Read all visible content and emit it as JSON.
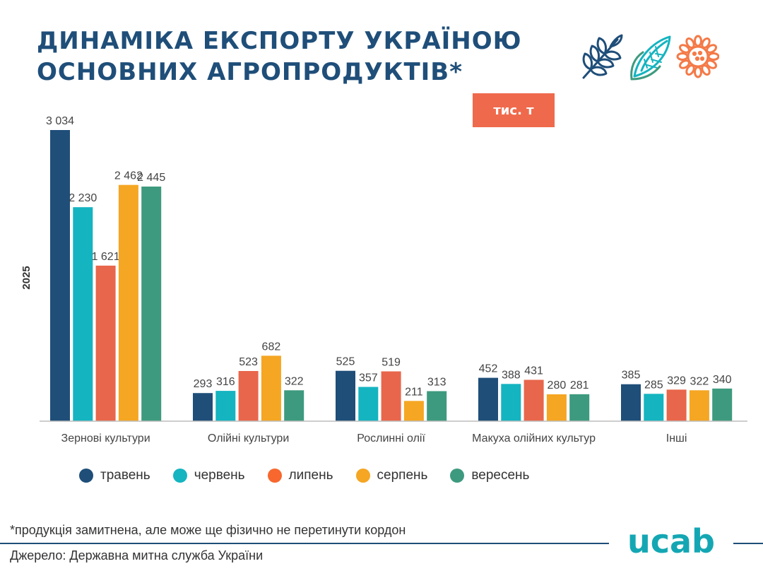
{
  "title": {
    "line1": "ДИНАМІКА ЕКСПОРТУ УКРАЇНОЮ",
    "line2": "ОСНОВНИХ АГРОПРОДУКТІВ*"
  },
  "unit_badge": "тис. т",
  "icons": [
    "wheat-icon",
    "corn-icon",
    "sunflower-icon"
  ],
  "colors": {
    "title": "#1f4e79",
    "badge": "#ef6a4c",
    "series": [
      "#1f4e79",
      "#14b4c0",
      "#e8664b",
      "#f5a623",
      "#3d9a7e"
    ],
    "legend_dots": [
      "#1f4e79",
      "#14b4c0",
      "#f7672e",
      "#f5a623",
      "#3d9a7e"
    ]
  },
  "chart_data": {
    "type": "bar",
    "ylabel": "2025",
    "categories": [
      "Зернові культури",
      "Олійні культури",
      "Рослинні олії",
      "Макуха олійних культур",
      "Інші"
    ],
    "series": [
      {
        "name": "травень",
        "values": [
          3034,
          293,
          525,
          452,
          385
        ],
        "labels": [
          "3 034",
          "293",
          "525",
          "452",
          "385"
        ]
      },
      {
        "name": "червень",
        "values": [
          2230,
          316,
          357,
          388,
          285
        ],
        "labels": [
          "2 230",
          "316",
          "357",
          "388",
          "285"
        ]
      },
      {
        "name": "липень",
        "values": [
          1621,
          523,
          519,
          431,
          329
        ],
        "labels": [
          "1 621",
          "523",
          "519",
          "431",
          "329"
        ]
      },
      {
        "name": "серпень",
        "values": [
          2462,
          682,
          211,
          280,
          322
        ],
        "labels": [
          "2 462",
          "682",
          "211",
          "280",
          "322"
        ]
      },
      {
        "name": "вересень",
        "values": [
          2445,
          322,
          313,
          281,
          340
        ],
        "labels": [
          "2 445",
          "322",
          "313",
          "281",
          "340"
        ]
      }
    ],
    "ylim": [
      0,
      3034
    ],
    "grid": false,
    "legend_position": "bottom"
  },
  "footnote": "*продукція замитнена, але може ще фізично не перетинути кордон",
  "source": "Джерело: Державна митна служба України",
  "logo_text": "ucab"
}
